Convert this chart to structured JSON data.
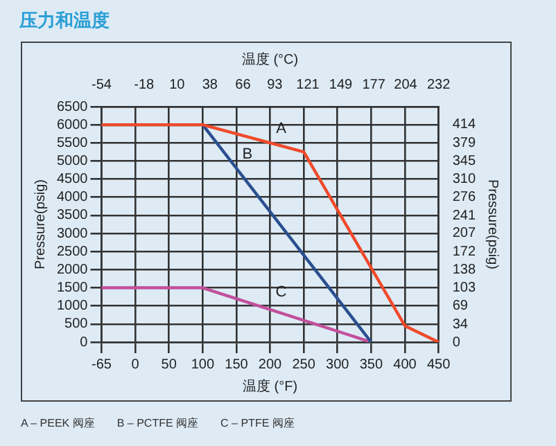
{
  "chart_data": {
    "type": "line",
    "title": "压力和温度",
    "xlabel": "温度 (°F)",
    "x2label": "温度 (°C)",
    "ylabel": "Pressure(psig)",
    "y2label": "Pressure(psig)",
    "categories": [
      "-65",
      "0",
      "50",
      "100",
      "150",
      "200",
      "250",
      "300",
      "350",
      "400",
      "450"
    ],
    "x2lim": [
      -54,
      232
    ],
    "x2ticks": [
      -54,
      -18,
      10,
      38,
      66,
      93,
      121,
      149,
      177,
      204,
      232
    ],
    "series": [
      {
        "color": "#f04a2a",
        "values": [
          6000,
          null,
          null,
          6000,
          null,
          null,
          5250,
          null,
          null,
          450,
          0
        ]
      },
      {
        "color": "#2b4f8f",
        "values": [
          6000,
          null,
          null,
          6000,
          null,
          null,
          null,
          null,
          0,
          null,
          null
        ]
      },
      {
        "color": "#c2509c",
        "values": [
          1500,
          null,
          null,
          1500,
          null,
          null,
          null,
          null,
          0,
          null,
          null
        ]
      }
    ],
    "ylim": [
      0,
      6500
    ],
    "yticks": [
      0,
      500,
      1000,
      1500,
      2000,
      2500,
      3000,
      3500,
      4000,
      4500,
      5000,
      5500,
      6000,
      6500
    ],
    "y2lim": [
      0,
      448
    ],
    "y2ticks": [
      0,
      34,
      69,
      103,
      138,
      172,
      207,
      241,
      276,
      310,
      345,
      379,
      414
    ],
    "grid": true,
    "marker": "none",
    "line_style": "solid",
    "legend": false,
    "annotations": [
      {
        "text": "A",
        "x": "200",
        "y": 5500
      },
      {
        "text": "B",
        "x": "150",
        "y": 4800
      },
      {
        "text": "C",
        "x": "200",
        "y": 1000
      },
      "A – PEEK 阀座",
      "B – PCTFE 阀座",
      "C – PTFE 阀座"
    ]
  }
}
